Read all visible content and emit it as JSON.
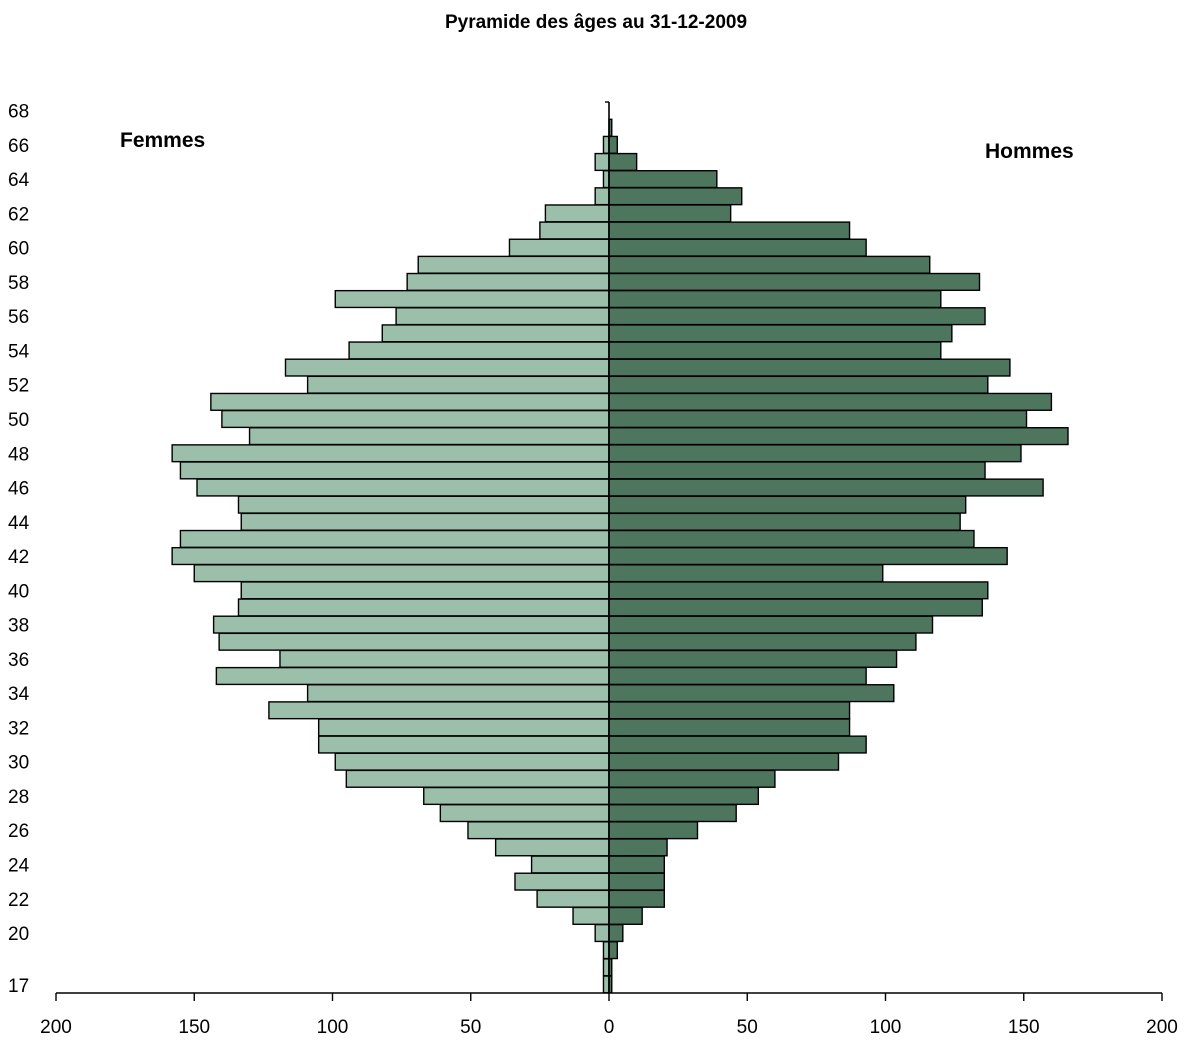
{
  "chart_data": {
    "type": "bar",
    "orientation": "horizontal-pyramid",
    "title": "Pyramide des âges au 31-12-2009",
    "categories": [
      17,
      18,
      19,
      20,
      21,
      22,
      23,
      24,
      25,
      26,
      27,
      28,
      29,
      30,
      31,
      32,
      33,
      34,
      35,
      36,
      37,
      38,
      39,
      40,
      41,
      42,
      43,
      44,
      45,
      46,
      47,
      48,
      49,
      50,
      51,
      52,
      53,
      54,
      55,
      56,
      57,
      58,
      59,
      60,
      61,
      62,
      63,
      64,
      65,
      66,
      67,
      68
    ],
    "y_tick_labels": [
      "17",
      "20",
      "22",
      "24",
      "26",
      "28",
      "30",
      "32",
      "34",
      "36",
      "38",
      "40",
      "42",
      "44",
      "46",
      "48",
      "50",
      "52",
      "54",
      "56",
      "58",
      "60",
      "62",
      "64",
      "66",
      "68"
    ],
    "x_tick_labels": [
      "200",
      "150",
      "100",
      "50",
      "0",
      "50",
      "100",
      "150",
      "200"
    ],
    "xlim": [
      -200,
      200
    ],
    "series": [
      {
        "name": "Femmes",
        "color": "#9bbfaa",
        "values": [
          2,
          2,
          2,
          5,
          13,
          26,
          34,
          28,
          41,
          51,
          61,
          67,
          95,
          99,
          105,
          105,
          123,
          109,
          142,
          119,
          141,
          143,
          134,
          133,
          150,
          158,
          155,
          133,
          134,
          149,
          155,
          158,
          130,
          140,
          144,
          109,
          117,
          94,
          82,
          77,
          99,
          73,
          69,
          36,
          25,
          23,
          5,
          2,
          5,
          2,
          0,
          0
        ]
      },
      {
        "name": "Hommes",
        "color": "#4e765e",
        "values": [
          1,
          1,
          3,
          5,
          12,
          20,
          20,
          20,
          21,
          32,
          46,
          54,
          60,
          83,
          93,
          87,
          87,
          103,
          93,
          104,
          111,
          117,
          135,
          137,
          99,
          144,
          132,
          127,
          129,
          157,
          136,
          149,
          166,
          151,
          160,
          137,
          145,
          120,
          124,
          136,
          120,
          134,
          116,
          93,
          87,
          44,
          48,
          39,
          10,
          3,
          1,
          0
        ]
      }
    ]
  }
}
